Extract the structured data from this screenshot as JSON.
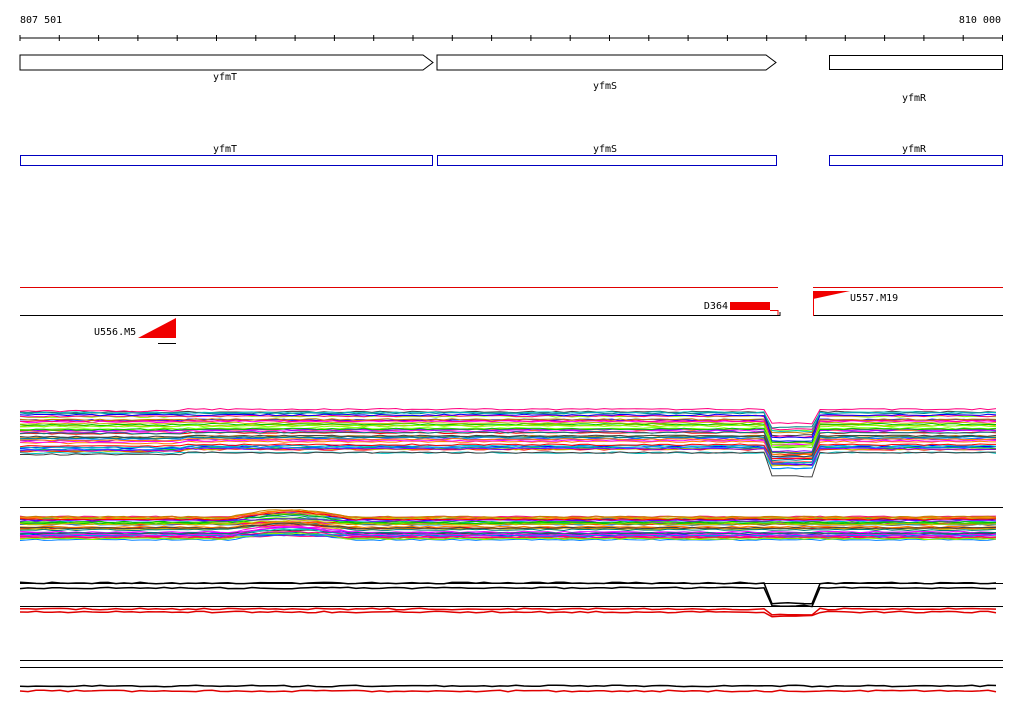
{
  "ruler": {
    "start": "807 501",
    "end": "810 000"
  },
  "genes": [
    {
      "label": "yfmT"
    },
    {
      "label": "yfmS"
    },
    {
      "label": "yfmR"
    }
  ],
  "cds": [
    {
      "label": "yfmT"
    },
    {
      "label": "yfmS"
    },
    {
      "label": "yfmR"
    }
  ],
  "features": [
    {
      "label": "D364"
    },
    {
      "label": "U556.M5"
    },
    {
      "label": "U557.M19"
    }
  ]
}
